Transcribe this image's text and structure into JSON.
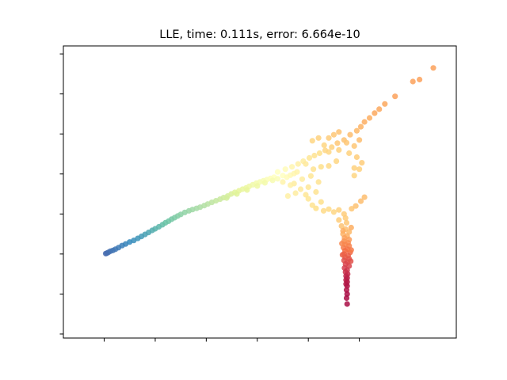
{
  "chart_data": {
    "type": "scatter",
    "title": "LLE, time: 0.111s, error: 6.664e-10",
    "xlabel": "",
    "ylabel": "",
    "xlim": [
      -0.023,
      0.054
    ],
    "ylim": [
      -0.021,
      0.052
    ],
    "x_ticks": [
      -0.015,
      -0.005,
      0.005,
      0.015,
      0.025,
      0.035
    ],
    "y_ticks": [
      -0.02,
      -0.01,
      0.0,
      0.01,
      0.02,
      0.03,
      0.04,
      0.05
    ],
    "tick_labels_visible": false,
    "grid": false,
    "legend": "none",
    "colormap": "Spectral",
    "colormap_stops": [
      "#9e0142",
      "#d53e4f",
      "#f46d43",
      "#fdae61",
      "#fee08b",
      "#ffffbf",
      "#e6f598",
      "#abdda4",
      "#66c2a5",
      "#3288bd",
      "#5e4fa2"
    ],
    "points": [
      {
        "x": -0.0147,
        "y": 0.0001,
        "t": 0.95
      },
      {
        "x": -0.0145,
        "y": 0.0002,
        "t": 0.948
      },
      {
        "x": -0.0142,
        "y": 0.0004,
        "t": 0.945
      },
      {
        "x": -0.0138,
        "y": 0.0007,
        "t": 0.94
      },
      {
        "x": -0.0133,
        "y": 0.0009,
        "t": 0.935
      },
      {
        "x": -0.0128,
        "y": 0.0012,
        "t": 0.93
      },
      {
        "x": -0.0122,
        "y": 0.0016,
        "t": 0.925
      },
      {
        "x": -0.0115,
        "y": 0.0021,
        "t": 0.918
      },
      {
        "x": -0.0108,
        "y": 0.0025,
        "t": 0.91
      },
      {
        "x": -0.01,
        "y": 0.003,
        "t": 0.9
      },
      {
        "x": -0.0092,
        "y": 0.0034,
        "t": 0.89
      },
      {
        "x": -0.0084,
        "y": 0.0039,
        "t": 0.88
      },
      {
        "x": -0.0077,
        "y": 0.0044,
        "t": 0.87
      },
      {
        "x": -0.007,
        "y": 0.0049,
        "t": 0.86
      },
      {
        "x": -0.0063,
        "y": 0.0054,
        "t": 0.85
      },
      {
        "x": -0.0056,
        "y": 0.0059,
        "t": 0.84
      },
      {
        "x": -0.005,
        "y": 0.0063,
        "t": 0.83
      },
      {
        "x": -0.0043,
        "y": 0.0068,
        "t": 0.82
      },
      {
        "x": -0.0036,
        "y": 0.0073,
        "t": 0.81
      },
      {
        "x": -0.003,
        "y": 0.0078,
        "t": 0.8
      },
      {
        "x": -0.0024,
        "y": 0.0082,
        "t": 0.79
      },
      {
        "x": -0.0018,
        "y": 0.0087,
        "t": 0.78
      },
      {
        "x": -0.0012,
        "y": 0.0091,
        "t": 0.77
      },
      {
        "x": -0.0006,
        "y": 0.0095,
        "t": 0.76
      },
      {
        "x": 0.0,
        "y": 0.0099,
        "t": 0.75
      },
      {
        "x": 0.0008,
        "y": 0.0104,
        "t": 0.74
      },
      {
        "x": 0.0016,
        "y": 0.0108,
        "t": 0.73
      },
      {
        "x": 0.0023,
        "y": 0.0111,
        "t": 0.72
      },
      {
        "x": 0.0031,
        "y": 0.0114,
        "t": 0.71
      },
      {
        "x": 0.0038,
        "y": 0.0117,
        "t": 0.7
      },
      {
        "x": 0.0046,
        "y": 0.0121,
        "t": 0.69
      },
      {
        "x": 0.0053,
        "y": 0.0125,
        "t": 0.68
      },
      {
        "x": 0.0061,
        "y": 0.0129,
        "t": 0.67
      },
      {
        "x": 0.0069,
        "y": 0.0133,
        "t": 0.66
      },
      {
        "x": 0.0077,
        "y": 0.0137,
        "t": 0.65
      },
      {
        "x": 0.0084,
        "y": 0.0141,
        "t": 0.64
      },
      {
        "x": 0.0092,
        "y": 0.0145,
        "t": 0.63
      },
      {
        "x": 0.0099,
        "y": 0.015,
        "t": 0.62
      },
      {
        "x": 0.0106,
        "y": 0.0154,
        "t": 0.61
      },
      {
        "x": 0.0114,
        "y": 0.0158,
        "t": 0.6
      },
      {
        "x": 0.0121,
        "y": 0.0162,
        "t": 0.59
      },
      {
        "x": 0.0128,
        "y": 0.0165,
        "t": 0.58
      },
      {
        "x": 0.0134,
        "y": 0.0169,
        "t": 0.57
      },
      {
        "x": 0.0141,
        "y": 0.0173,
        "t": 0.56
      },
      {
        "x": 0.0148,
        "y": 0.0177,
        "t": 0.55
      },
      {
        "x": 0.0155,
        "y": 0.018,
        "t": 0.54
      },
      {
        "x": 0.0162,
        "y": 0.0183,
        "t": 0.53
      },
      {
        "x": 0.0169,
        "y": 0.0186,
        "t": 0.52
      },
      {
        "x": 0.0176,
        "y": 0.0189,
        "t": 0.51
      },
      {
        "x": 0.0183,
        "y": 0.0192,
        "t": 0.5
      },
      {
        "x": 0.009,
        "y": 0.014,
        "t": 0.63
      },
      {
        "x": 0.011,
        "y": 0.015,
        "t": 0.61
      },
      {
        "x": 0.013,
        "y": 0.016,
        "t": 0.59
      },
      {
        "x": 0.015,
        "y": 0.017,
        "t": 0.57
      },
      {
        "x": 0.0165,
        "y": 0.0178,
        "t": 0.55
      },
      {
        "x": 0.018,
        "y": 0.0184,
        "t": 0.53
      },
      {
        "x": 0.019,
        "y": 0.0188,
        "t": 0.52
      },
      {
        "x": 0.02,
        "y": 0.0196,
        "t": 0.5
      },
      {
        "x": 0.0208,
        "y": 0.0192,
        "t": 0.49
      },
      {
        "x": 0.0215,
        "y": 0.0197,
        "t": 0.48
      },
      {
        "x": 0.0222,
        "y": 0.0201,
        "t": 0.47
      },
      {
        "x": 0.0228,
        "y": 0.0205,
        "t": 0.46
      },
      {
        "x": 0.019,
        "y": 0.0205,
        "t": 0.5
      },
      {
        "x": 0.0205,
        "y": 0.0212,
        "t": 0.49
      },
      {
        "x": 0.0218,
        "y": 0.0218,
        "t": 0.47
      },
      {
        "x": 0.023,
        "y": 0.0225,
        "t": 0.45
      },
      {
        "x": 0.024,
        "y": 0.0232,
        "t": 0.44
      },
      {
        "x": 0.0252,
        "y": 0.024,
        "t": 0.42
      },
      {
        "x": 0.0262,
        "y": 0.0246,
        "t": 0.41
      },
      {
        "x": 0.0272,
        "y": 0.0252,
        "t": 0.4
      },
      {
        "x": 0.0283,
        "y": 0.0259,
        "t": 0.38
      },
      {
        "x": 0.0296,
        "y": 0.0267,
        "t": 0.37
      },
      {
        "x": 0.0307,
        "y": 0.0277,
        "t": 0.35
      },
      {
        "x": 0.032,
        "y": 0.0285,
        "t": 0.34
      },
      {
        "x": 0.0332,
        "y": 0.0298,
        "t": 0.33
      },
      {
        "x": 0.0345,
        "y": 0.0308,
        "t": 0.32
      },
      {
        "x": 0.0353,
        "y": 0.0318,
        "t": 0.31
      },
      {
        "x": 0.036,
        "y": 0.033,
        "t": 0.3
      },
      {
        "x": 0.037,
        "y": 0.034,
        "t": 0.3
      },
      {
        "x": 0.038,
        "y": 0.0352,
        "t": 0.29
      },
      {
        "x": 0.0389,
        "y": 0.0362,
        "t": 0.29
      },
      {
        "x": 0.04,
        "y": 0.0375,
        "t": 0.29
      },
      {
        "x": 0.042,
        "y": 0.0394,
        "t": 0.28
      },
      {
        "x": 0.0455,
        "y": 0.0431,
        "t": 0.28
      },
      {
        "x": 0.0468,
        "y": 0.0436,
        "t": 0.28
      },
      {
        "x": 0.0495,
        "y": 0.0465,
        "t": 0.28
      },
      {
        "x": 0.0258,
        "y": 0.0283,
        "t": 0.38
      },
      {
        "x": 0.027,
        "y": 0.029,
        "t": 0.37
      },
      {
        "x": 0.0281,
        "y": 0.0272,
        "t": 0.38
      },
      {
        "x": 0.029,
        "y": 0.029,
        "t": 0.36
      },
      {
        "x": 0.03,
        "y": 0.0298,
        "t": 0.35
      },
      {
        "x": 0.031,
        "y": 0.0305,
        "t": 0.34
      },
      {
        "x": 0.0325,
        "y": 0.0278,
        "t": 0.35
      },
      {
        "x": 0.034,
        "y": 0.027,
        "t": 0.35
      },
      {
        "x": 0.035,
        "y": 0.0285,
        "t": 0.33
      },
      {
        "x": 0.029,
        "y": 0.0255,
        "t": 0.38
      },
      {
        "x": 0.031,
        "y": 0.026,
        "t": 0.37
      },
      {
        "x": 0.033,
        "y": 0.0252,
        "t": 0.37
      },
      {
        "x": 0.0345,
        "y": 0.0242,
        "t": 0.36
      },
      {
        "x": 0.0355,
        "y": 0.0228,
        "t": 0.36
      },
      {
        "x": 0.035,
        "y": 0.0212,
        "t": 0.37
      },
      {
        "x": 0.034,
        "y": 0.0196,
        "t": 0.38
      },
      {
        "x": 0.034,
        "y": 0.0215,
        "t": 0.37
      },
      {
        "x": 0.0305,
        "y": 0.0232,
        "t": 0.38
      },
      {
        "x": 0.029,
        "y": 0.022,
        "t": 0.39
      },
      {
        "x": 0.026,
        "y": 0.0212,
        "t": 0.41
      },
      {
        "x": 0.0275,
        "y": 0.0218,
        "t": 0.4
      },
      {
        "x": 0.0245,
        "y": 0.0225,
        "t": 0.43
      },
      {
        "x": 0.0255,
        "y": 0.0195,
        "t": 0.42
      },
      {
        "x": 0.027,
        "y": 0.018,
        "t": 0.41
      },
      {
        "x": 0.0238,
        "y": 0.0187,
        "t": 0.44
      },
      {
        "x": 0.0222,
        "y": 0.0176,
        "t": 0.44
      },
      {
        "x": 0.025,
        "y": 0.0167,
        "t": 0.42
      },
      {
        "x": 0.0235,
        "y": 0.0162,
        "t": 0.43
      },
      {
        "x": 0.0265,
        "y": 0.0155,
        "t": 0.41
      },
      {
        "x": 0.0245,
        "y": 0.0148,
        "t": 0.42
      },
      {
        "x": 0.0215,
        "y": 0.0172,
        "t": 0.45
      },
      {
        "x": 0.02,
        "y": 0.018,
        "t": 0.46
      },
      {
        "x": 0.0225,
        "y": 0.0152,
        "t": 0.44
      },
      {
        "x": 0.021,
        "y": 0.0145,
        "t": 0.45
      },
      {
        "x": 0.025,
        "y": 0.0138,
        "t": 0.42
      },
      {
        "x": 0.0275,
        "y": 0.013,
        "t": 0.4
      },
      {
        "x": 0.0258,
        "y": 0.0122,
        "t": 0.41
      },
      {
        "x": 0.0265,
        "y": 0.0114,
        "t": 0.4
      },
      {
        "x": 0.028,
        "y": 0.0108,
        "t": 0.39
      },
      {
        "x": 0.029,
        "y": 0.0112,
        "t": 0.39
      },
      {
        "x": 0.03,
        "y": 0.0105,
        "t": 0.38
      },
      {
        "x": 0.031,
        "y": 0.011,
        "t": 0.37
      },
      {
        "x": 0.032,
        "y": 0.01,
        "t": 0.36
      },
      {
        "x": 0.0335,
        "y": 0.0113,
        "t": 0.35
      },
      {
        "x": 0.0343,
        "y": 0.012,
        "t": 0.34
      },
      {
        "x": 0.0353,
        "y": 0.0132,
        "t": 0.33
      },
      {
        "x": 0.036,
        "y": 0.0142,
        "t": 0.33
      },
      {
        "x": 0.0323,
        "y": 0.009,
        "t": 0.36
      },
      {
        "x": 0.031,
        "y": 0.0085,
        "t": 0.36
      },
      {
        "x": 0.0325,
        "y": 0.0078,
        "t": 0.35
      },
      {
        "x": 0.0315,
        "y": 0.007,
        "t": 0.34
      },
      {
        "x": 0.0323,
        "y": 0.0062,
        "t": 0.33
      },
      {
        "x": 0.033,
        "y": 0.0055,
        "t": 0.32
      },
      {
        "x": 0.0318,
        "y": 0.005,
        "t": 0.31
      },
      {
        "x": 0.0326,
        "y": 0.0045,
        "t": 0.3
      },
      {
        "x": 0.0321,
        "y": 0.004,
        "t": 0.28
      },
      {
        "x": 0.033,
        "y": 0.0036,
        "t": 0.27
      },
      {
        "x": 0.032,
        "y": 0.0032,
        "t": 0.26
      },
      {
        "x": 0.0328,
        "y": 0.0028,
        "t": 0.25
      },
      {
        "x": 0.0322,
        "y": 0.0024,
        "t": 0.24
      },
      {
        "x": 0.033,
        "y": 0.002,
        "t": 0.23
      },
      {
        "x": 0.0319,
        "y": 0.0016,
        "t": 0.22
      },
      {
        "x": 0.0327,
        "y": 0.0012,
        "t": 0.21
      },
      {
        "x": 0.0322,
        "y": 0.0008,
        "t": 0.2
      },
      {
        "x": 0.0332,
        "y": 0.0004,
        "t": 0.19
      },
      {
        "x": 0.032,
        "y": 0.0,
        "t": 0.18
      },
      {
        "x": 0.0328,
        "y": -0.0004,
        "t": 0.17
      },
      {
        "x": 0.0322,
        "y": -0.0008,
        "t": 0.16
      },
      {
        "x": 0.033,
        "y": -0.0012,
        "t": 0.15
      },
      {
        "x": 0.032,
        "y": -0.0016,
        "t": 0.14
      },
      {
        "x": 0.0327,
        "y": -0.002,
        "t": 0.13
      },
      {
        "x": 0.0323,
        "y": -0.0025,
        "t": 0.12
      },
      {
        "x": 0.033,
        "y": -0.003,
        "t": 0.11
      },
      {
        "x": 0.0321,
        "y": -0.0035,
        "t": 0.1
      },
      {
        "x": 0.0326,
        "y": -0.004,
        "t": 0.09
      },
      {
        "x": 0.0323,
        "y": -0.0045,
        "t": 0.08
      },
      {
        "x": 0.0327,
        "y": -0.005,
        "t": 0.07
      },
      {
        "x": 0.0324,
        "y": -0.0055,
        "t": 0.06
      },
      {
        "x": 0.0326,
        "y": -0.006,
        "t": 0.05
      },
      {
        "x": 0.0324,
        "y": -0.0065,
        "t": 0.05
      },
      {
        "x": 0.0326,
        "y": -0.007,
        "t": 0.04
      },
      {
        "x": 0.0324,
        "y": -0.0075,
        "t": 0.04
      },
      {
        "x": 0.0326,
        "y": -0.008,
        "t": 0.03
      },
      {
        "x": 0.0325,
        "y": -0.009,
        "t": 0.03
      },
      {
        "x": 0.0326,
        "y": -0.01,
        "t": 0.02
      },
      {
        "x": 0.0325,
        "y": -0.011,
        "t": 0.02
      },
      {
        "x": 0.0326,
        "y": -0.0125,
        "t": 0.02
      },
      {
        "x": 0.0318,
        "y": 0.0058,
        "t": 0.3
      },
      {
        "x": 0.0334,
        "y": 0.0066,
        "t": 0.3
      },
      {
        "x": 0.0316,
        "y": 0.0026,
        "t": 0.24
      },
      {
        "x": 0.0334,
        "y": 0.001,
        "t": 0.22
      },
      {
        "x": 0.0317,
        "y": -0.0002,
        "t": 0.17
      },
      {
        "x": 0.0333,
        "y": -0.0018,
        "t": 0.14
      }
    ]
  }
}
